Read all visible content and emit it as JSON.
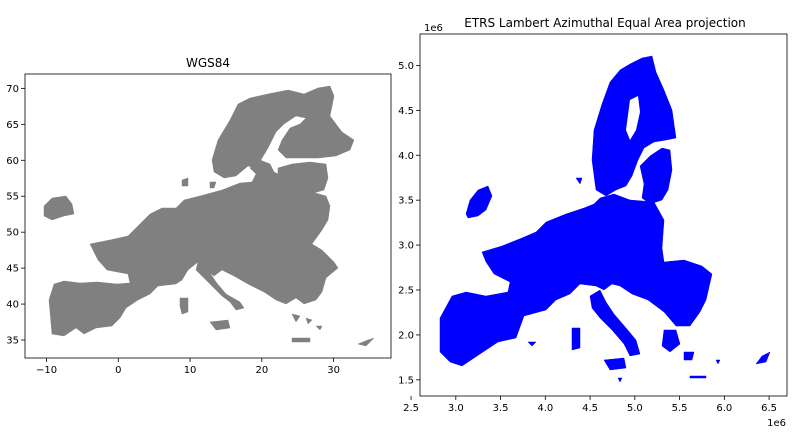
{
  "chart_data": [
    {
      "type": "map",
      "title": "WGS84",
      "xlim": [
        -13,
        38
      ],
      "ylim": [
        32.5,
        72
      ],
      "xticks": [
        -10,
        0,
        10,
        20,
        30
      ],
      "yticks": [
        35,
        40,
        45,
        50,
        55,
        60,
        65,
        70
      ],
      "xtick_labels": [
        "−10",
        "0",
        "10",
        "20",
        "30"
      ],
      "ytick_labels": [
        "35",
        "40",
        "45",
        "50",
        "55",
        "60",
        "65",
        "70"
      ],
      "fill_color": "#808080",
      "grid": false
    },
    {
      "type": "map",
      "title": "ETRS Lambert Azimuthal Equal Area projection",
      "xlim": [
        2.6,
        6.7
      ],
      "ylim": [
        1.32,
        5.35
      ],
      "offset_x": "1e6",
      "offset_y": "1e6",
      "xticks": [
        2.5,
        3.0,
        3.5,
        4.0,
        4.5,
        5.0,
        5.5,
        6.0,
        6.5
      ],
      "yticks": [
        1.5,
        2.0,
        2.5,
        3.0,
        3.5,
        4.0,
        4.5,
        5.0
      ],
      "xtick_labels": [
        "2.5",
        "3.0",
        "3.5",
        "4.0",
        "4.5",
        "5.0",
        "5.5",
        "6.0",
        "6.5"
      ],
      "ytick_labels": [
        "1.5",
        "2.0",
        "2.5",
        "3.0",
        "3.5",
        "4.0",
        "4.5",
        "5.0"
      ],
      "fill_color": "#0000ff",
      "grid": false
    }
  ]
}
